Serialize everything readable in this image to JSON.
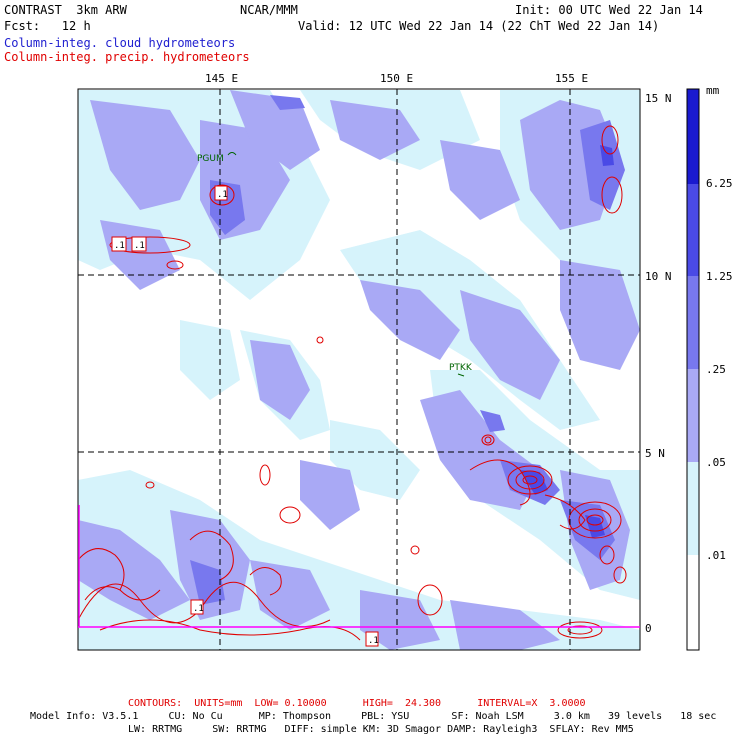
{
  "header": {
    "model": "CONTRAST  3km ARW",
    "org": "NCAR/MMM",
    "init": "Init: 00 UTC Wed 22 Jan 14",
    "fcst": "Fcst:   12 h",
    "valid": "Valid: 12 UTC Wed 22 Jan 14 (22 ChT Wed 22 Jan 14)",
    "field1": "Column-integ. cloud hydrometeors",
    "field2": "Column-integ. precip. hydrometeors"
  },
  "map": {
    "lon_labels": [
      "145 E",
      "150 E",
      "155 E"
    ],
    "lat_labels": [
      "15 N",
      "10 N",
      "5 N",
      "0"
    ],
    "stations": [
      "PGUM",
      "PTKK"
    ],
    "contour_labels": [
      ".1",
      ".1",
      ".1",
      ".1",
      ".1"
    ]
  },
  "colorbar": {
    "unit": "mm",
    "levels": [
      "6.25",
      "1.25",
      ".25",
      ".05",
      ".01"
    ],
    "colors": [
      "#1a1ad0",
      "#4a4ae6",
      "#7878ee",
      "#a9a9f5",
      "#d6f3fb",
      "#ffffff"
    ]
  },
  "footer": {
    "contours": "CONTOURS:  UNITS=mm  LOW= 0.10000      HIGH=  24.300      INTERVAL=X  3.0000",
    "model_info_1": "Model Info: V3.5.1     CU: No Cu      MP: Thompson     PBL: YSU       SF: Noah LSM     3.0 km   39 levels   18 sec",
    "model_info_2": "LW: RRTMG     SW: RRTMG   DIFF: simple KM: 3D Smagor DAMP: Rayleigh3  SFLAY: Rev MM5"
  }
}
